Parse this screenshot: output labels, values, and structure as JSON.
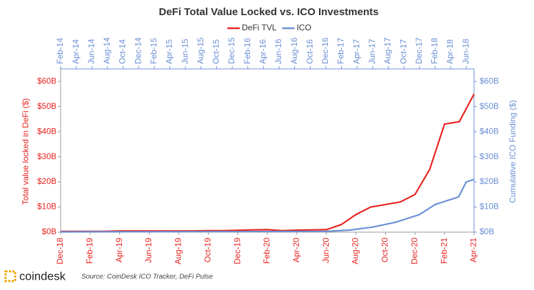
{
  "chart_data": {
    "type": "line",
    "title": "DeFi Total Value Locked vs. ICO Investments",
    "ylabel": "Total value locked in DeFi ($)",
    "y2label": "Cumulative ICO Funding ($)",
    "source": "Source: CoinDesk ICO Tracker, DeFi Pulse",
    "brand": "coindesk",
    "xlim": [
      "Dec-18",
      "Apr-21"
    ],
    "xticks": [
      "Dec-18",
      "Feb-19",
      "Apr-19",
      "Jun-19",
      "Aug-19",
      "Oct-19",
      "Dec-19",
      "Feb-20",
      "Apr-20",
      "Jun-20",
      "Aug-20",
      "Oct-20",
      "Dec-20",
      "Feb-21",
      "Apr-21"
    ],
    "x2lim": [
      "Feb-14",
      "Jul-18"
    ],
    "x2ticks": [
      "Feb-14",
      "Apr-14",
      "Jun-14",
      "Aug-14",
      "Oct-14",
      "Dec-14",
      "Feb-15",
      "Apr-15",
      "Jun-15",
      "Aug-15",
      "Oct-15",
      "Dec-15",
      "Feb-16",
      "Apr-16",
      "Jun-16",
      "Aug-16",
      "Oct-16",
      "Dec-16",
      "Feb-17",
      "Apr-17",
      "Jun-17",
      "Aug-17",
      "Oct-17",
      "Dec-17",
      "Feb-18",
      "Apr-18",
      "Jun-18"
    ],
    "ylim": [
      0,
      65
    ],
    "yticks": [
      {
        "value": 0,
        "label": "$0B"
      },
      {
        "value": 10,
        "label": "$10B"
      },
      {
        "value": 20,
        "label": "$20B"
      },
      {
        "value": 30,
        "label": "$30B"
      },
      {
        "value": 40,
        "label": "$40B"
      },
      {
        "value": 50,
        "label": "$50B"
      },
      {
        "value": 60,
        "label": "$60B"
      }
    ],
    "y2lim": [
      0,
      65
    ],
    "y2ticks": [
      {
        "value": 0,
        "label": "$0B"
      },
      {
        "value": 10,
        "label": "$10B"
      },
      {
        "value": 20,
        "label": "$20B"
      },
      {
        "value": 30,
        "label": "$30B"
      },
      {
        "value": 40,
        "label": "$40B"
      },
      {
        "value": 50,
        "label": "$50B"
      },
      {
        "value": 60,
        "label": "$60B"
      }
    ],
    "series": [
      {
        "name": "DeFi TVL",
        "color": "#e8231f",
        "x": [
          "Dec-18",
          "Jan-19",
          "Feb-19",
          "Mar-19",
          "Apr-19",
          "May-19",
          "Jun-19",
          "Jul-19",
          "Aug-19",
          "Sep-19",
          "Oct-19",
          "Nov-19",
          "Dec-19",
          "Jan-20",
          "Feb-20",
          "Mar-20",
          "Apr-20",
          "May-20",
          "Jun-20",
          "Jul-20",
          "Aug-20",
          "Sep-20",
          "Oct-20",
          "Nov-20",
          "Dec-20",
          "Jan-21",
          "Feb-21",
          "Mar-21",
          "Apr-21"
        ],
        "values": [
          0.3,
          0.3,
          0.3,
          0.3,
          0.5,
          0.5,
          0.5,
          0.5,
          0.5,
          0.5,
          0.6,
          0.6,
          0.7,
          0.9,
          1,
          0.6,
          0.8,
          0.9,
          1,
          3,
          7,
          10,
          11,
          12,
          15,
          25,
          43,
          44,
          55
        ]
      },
      {
        "name": "ICO",
        "color": "#6a8fd4",
        "axis": "y2",
        "x": [
          "Feb-14",
          "Dec-16",
          "Mar-17",
          "Jun-17",
          "Sep-17",
          "Dec-17",
          "Feb-18",
          "Apr-18",
          "May-18",
          "Jun-18",
          "Jul-18"
        ],
        "values": [
          0.1,
          0.3,
          0.8,
          2,
          4,
          7,
          11,
          13,
          14,
          20,
          21
        ]
      }
    ]
  }
}
